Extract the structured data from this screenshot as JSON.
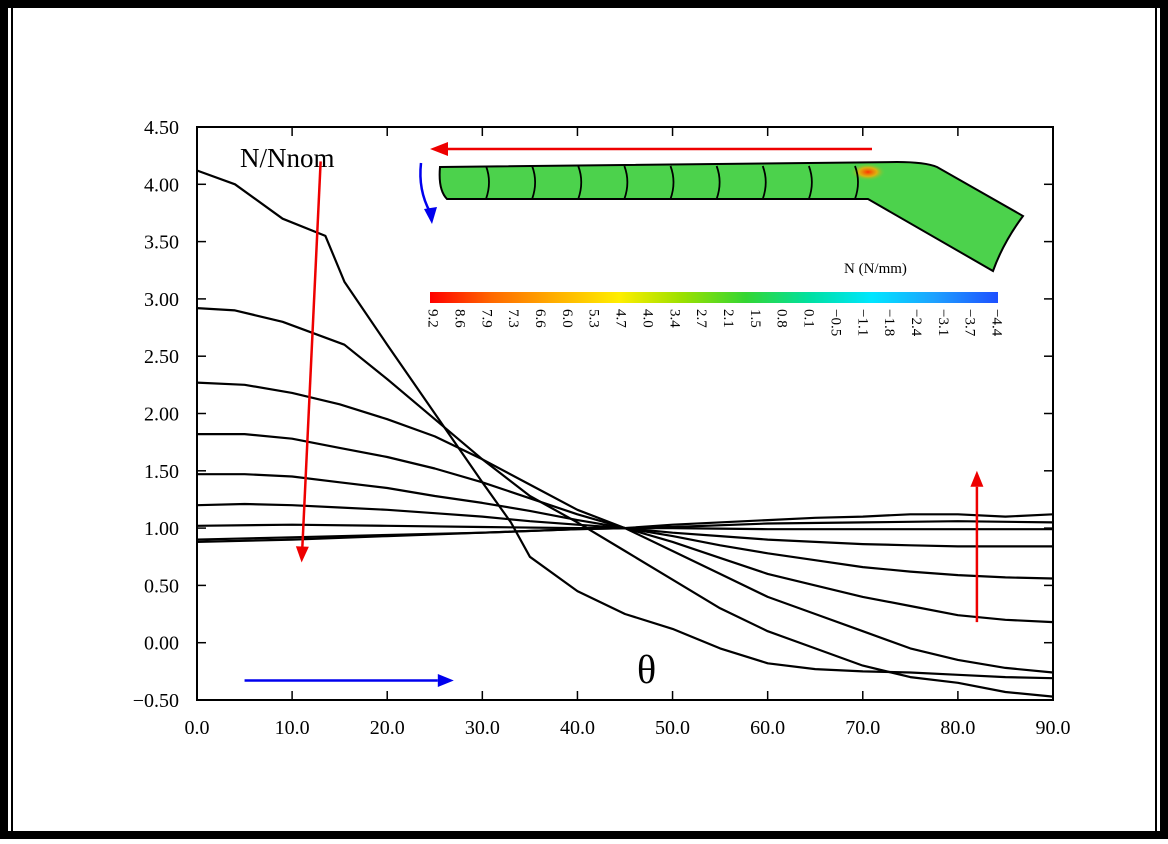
{
  "chart_data": {
    "type": "line",
    "title": "",
    "xlabel": "θ",
    "ylabel": "N/Nnom",
    "xlim": [
      0,
      90
    ],
    "ylim": [
      -0.5,
      4.5
    ],
    "x_ticks": [
      "0.0",
      "10.0",
      "20.0",
      "30.0",
      "40.0",
      "50.0",
      "60.0",
      "70.0",
      "80.0",
      "90.0"
    ],
    "y_ticks": [
      "−0.50",
      "0.00",
      "0.50",
      "1.00",
      "1.50",
      "2.00",
      "2.50",
      "3.00",
      "3.50",
      "4.00",
      "4.50"
    ],
    "grid": false,
    "legend": "none",
    "series": [
      {
        "x": [
          0,
          4,
          9,
          13.5,
          15.5,
          20,
          25,
          30,
          33,
          35,
          40,
          45,
          50,
          55,
          60,
          65,
          70,
          75,
          80,
          85,
          90
        ],
        "y": [
          4.12,
          4.0,
          3.7,
          3.55,
          3.15,
          2.6,
          2.0,
          1.4,
          1.05,
          0.75,
          0.45,
          0.25,
          0.12,
          -0.05,
          -0.18,
          -0.23,
          -0.25,
          -0.26,
          -0.28,
          -0.3,
          -0.31
        ]
      },
      {
        "x": [
          0,
          4,
          9,
          15.5,
          20,
          25,
          30,
          35,
          40,
          45,
          50,
          55,
          60,
          65,
          70,
          75,
          80,
          85,
          90
        ],
        "y": [
          2.92,
          2.9,
          2.8,
          2.6,
          2.3,
          1.95,
          1.6,
          1.28,
          1.05,
          0.8,
          0.55,
          0.3,
          0.1,
          -0.05,
          -0.2,
          -0.3,
          -0.35,
          -0.43,
          -0.47
        ]
      },
      {
        "x": [
          0,
          5,
          10,
          15,
          20,
          25,
          30,
          35,
          40,
          45,
          50,
          55,
          60,
          65,
          70,
          75,
          80,
          85,
          90
        ],
        "y": [
          2.27,
          2.25,
          2.18,
          2.08,
          1.95,
          1.8,
          1.6,
          1.38,
          1.16,
          1.0,
          0.8,
          0.6,
          0.4,
          0.25,
          0.1,
          -0.05,
          -0.15,
          -0.22,
          -0.26
        ]
      },
      {
        "x": [
          0,
          5,
          10,
          15,
          20,
          25,
          30,
          35,
          40,
          45,
          50,
          55,
          60,
          65,
          70,
          75,
          80,
          85,
          90
        ],
        "y": [
          1.82,
          1.82,
          1.78,
          1.7,
          1.62,
          1.52,
          1.4,
          1.26,
          1.12,
          1.0,
          0.88,
          0.74,
          0.6,
          0.5,
          0.4,
          0.32,
          0.24,
          0.2,
          0.18
        ]
      },
      {
        "x": [
          0,
          5,
          10,
          15,
          20,
          25,
          30,
          35,
          40,
          45,
          50,
          55,
          60,
          65,
          70,
          75,
          80,
          85,
          90
        ],
        "y": [
          1.47,
          1.47,
          1.45,
          1.4,
          1.35,
          1.28,
          1.22,
          1.15,
          1.07,
          1.0,
          0.93,
          0.85,
          0.78,
          0.72,
          0.66,
          0.62,
          0.59,
          0.57,
          0.56
        ]
      },
      {
        "x": [
          0,
          5,
          10,
          15,
          20,
          25,
          30,
          35,
          40,
          45,
          50,
          55,
          60,
          65,
          70,
          75,
          80,
          85,
          90
        ],
        "y": [
          1.2,
          1.21,
          1.2,
          1.18,
          1.16,
          1.13,
          1.1,
          1.06,
          1.03,
          1.0,
          0.96,
          0.93,
          0.9,
          0.88,
          0.86,
          0.85,
          0.84,
          0.84,
          0.84
        ]
      },
      {
        "x": [
          0,
          10,
          20,
          30,
          40,
          45,
          50,
          60,
          70,
          80,
          90
        ],
        "y": [
          1.02,
          1.03,
          1.02,
          1.01,
          1.0,
          1.0,
          1.0,
          0.99,
          0.99,
          0.99,
          0.99
        ]
      },
      {
        "x": [
          0,
          10,
          20,
          30,
          40,
          45,
          50,
          60,
          70,
          80,
          90
        ],
        "y": [
          0.9,
          0.92,
          0.94,
          0.96,
          0.99,
          1.0,
          1.01,
          1.04,
          1.05,
          1.06,
          1.05
        ]
      },
      {
        "x": [
          0,
          10,
          20,
          30,
          40,
          45,
          50,
          60,
          65,
          70,
          75,
          80,
          85,
          90
        ],
        "y": [
          0.88,
          0.9,
          0.93,
          0.96,
          0.99,
          1.0,
          1.03,
          1.07,
          1.09,
          1.1,
          1.12,
          1.12,
          1.1,
          1.12
        ]
      }
    ],
    "annotations": [
      {
        "name": "red-down-arrow",
        "from": [
          13,
          4.2
        ],
        "to": [
          11,
          0.7
        ],
        "color": "#ee0000"
      },
      {
        "name": "red-up-arrow",
        "from": [
          82,
          0.18
        ],
        "to": [
          82,
          1.5
        ],
        "color": "#ee0000"
      },
      {
        "name": "blue-right-arrow",
        "from": [
          5,
          -0.33
        ],
        "to": [
          27,
          -0.33
        ],
        "color": "#0000ee"
      }
    ]
  },
  "inset": {
    "colorbar_title": "N (N/mm)",
    "colorbar_labels": [
      "9.2",
      "8.6",
      "7.9",
      "7.3",
      "6.6",
      "6.0",
      "5.3",
      "4.7",
      "4.0",
      "3.4",
      "2.7",
      "2.1",
      "1.5",
      "0.8",
      "0.1",
      "−0.5",
      "−1.1",
      "−1.8",
      "−2.4",
      "−3.1",
      "−3.7",
      "−4.4"
    ],
    "colorbar_colors": [
      "#ff0000",
      "#ff6a00",
      "#ffb000",
      "#ffee00",
      "#9be000",
      "#33d633",
      "#00e0a0",
      "#00e6ff",
      "#1ea0ff",
      "#1e50ff"
    ],
    "shell_color": "#4cd24c",
    "hotspot_color": "#ff6600",
    "ring_count": 9
  },
  "colors": {
    "series": "#000000",
    "red_arrow": "#ee0000",
    "blue_arrow": "#0000ee"
  }
}
